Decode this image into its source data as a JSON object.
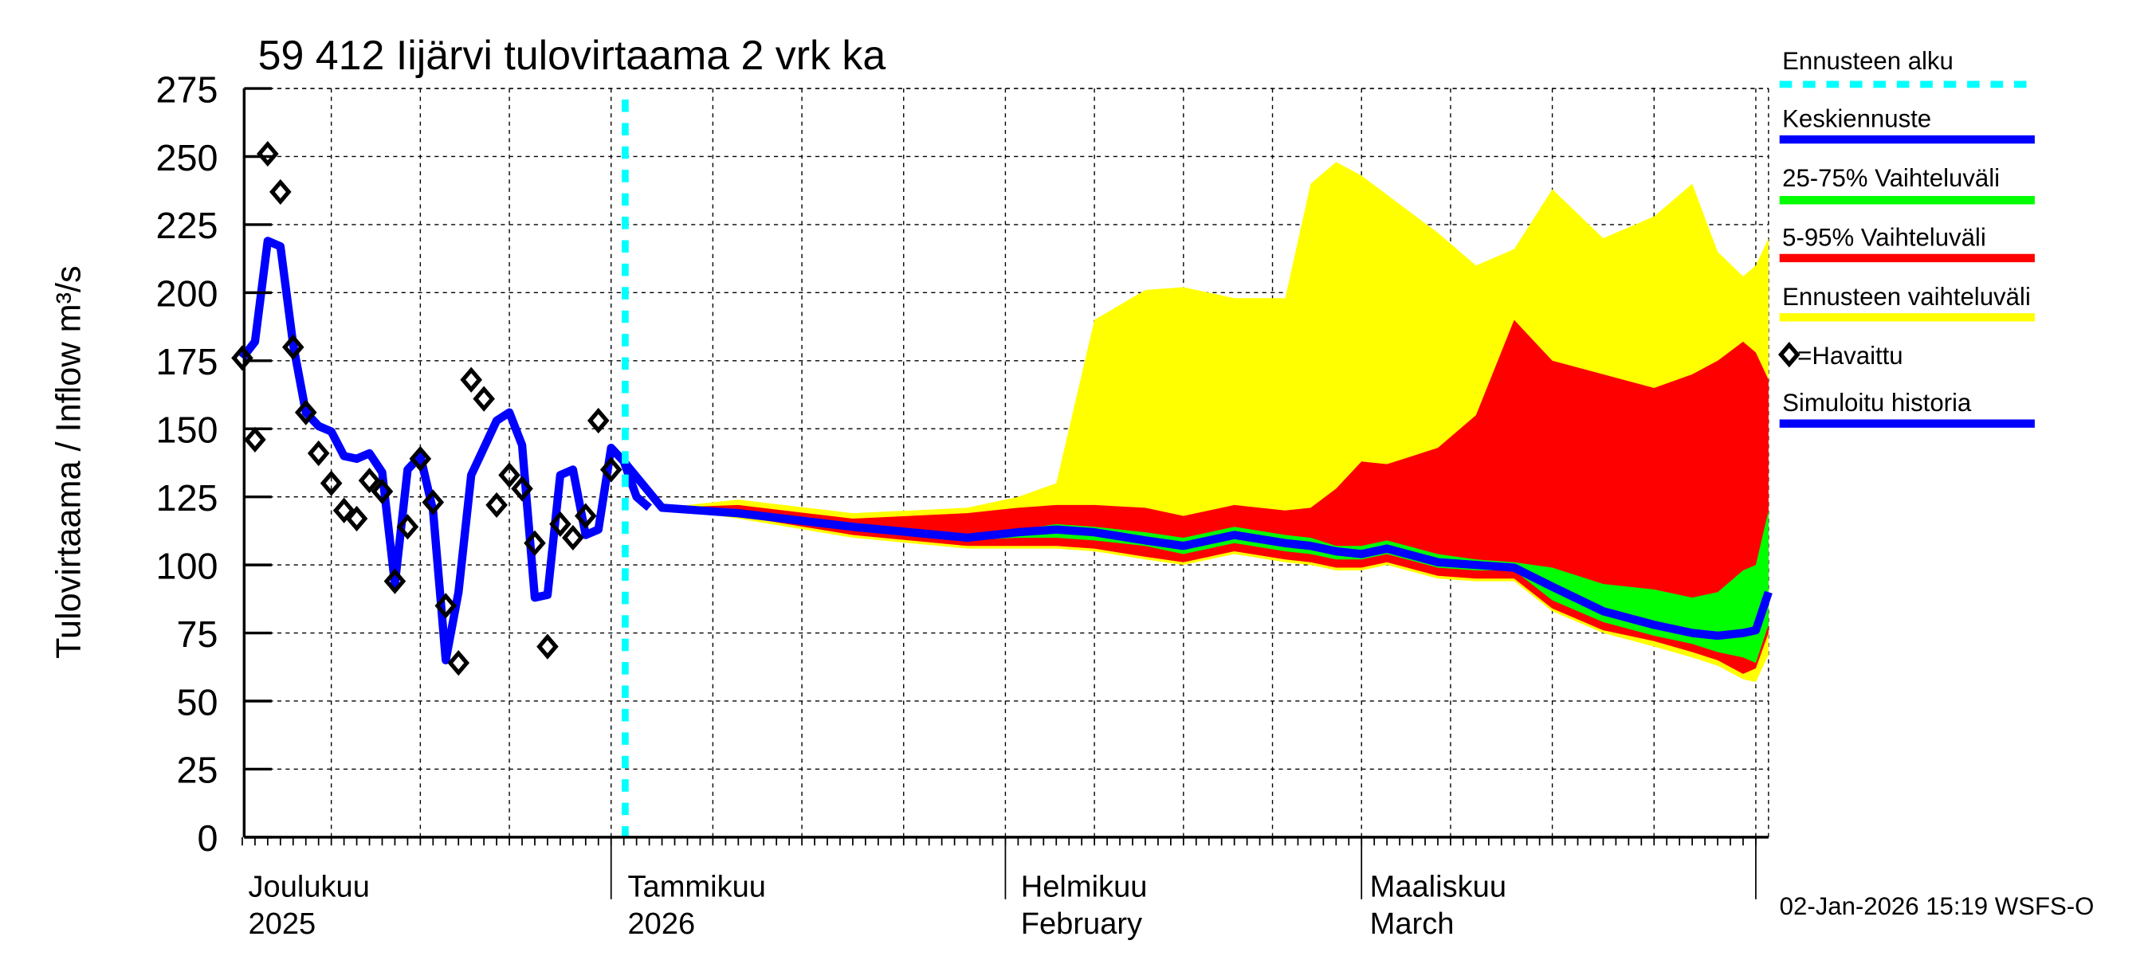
{
  "chart_data": {
    "type": "area",
    "title": "59 412 Iijärvi tulovirtaama 2 vrk ka",
    "ylabel": "Tulovirtaama / Inflow    m³/s",
    "ylim": [
      0,
      275
    ],
    "yticks": [
      0,
      25,
      50,
      75,
      100,
      125,
      150,
      175,
      200,
      225,
      250,
      275
    ],
    "xlim": [
      "2025-12-03",
      "2026-04-02"
    ],
    "grid": true,
    "legend_position": "right",
    "month_labels": [
      {
        "date": "2025-12-01",
        "line1": "Joulukuu",
        "line2": "2025"
      },
      {
        "date": "2026-01-01",
        "line1": "Tammikuu",
        "line2": "2026"
      },
      {
        "date": "2026-02-01",
        "line1": "Helmikuu",
        "line2": "February"
      },
      {
        "date": "2026-03-01",
        "line1": "Maaliskuu",
        "line2": "March"
      }
    ],
    "forecast_start": "2026-01-02",
    "legend": {
      "forecast_start": "Ennusteen alku",
      "median": "Keskiennuste",
      "p25_75": "25-75% Vaihteluväli",
      "p5_95": "5-95% Vaihteluväli",
      "range": "Ennusteen vaihteluväli",
      "observed": "=Havaittu",
      "simulated": "Simuloitu historia"
    },
    "colors": {
      "forecast_start": "#00ffff",
      "median": "#0000ff",
      "p25_75": "#00ff00",
      "p5_95": "#ff0000",
      "range": "#ffff00",
      "observed": "#000000",
      "simulated": "#0000ff"
    },
    "observed": {
      "start": "2025-12-03",
      "values": [
        176,
        146,
        251,
        237,
        180,
        156,
        141,
        130,
        120,
        117,
        131,
        127,
        94,
        114,
        139,
        123,
        85,
        64,
        168,
        161,
        122,
        133,
        128,
        108,
        70,
        115,
        110,
        118,
        153,
        135
      ]
    },
    "simulated": {
      "start": "2025-12-03",
      "values": [
        176,
        182,
        219,
        217,
        181,
        156,
        151,
        149,
        140,
        139,
        141,
        134,
        93,
        135,
        140,
        120,
        65,
        90,
        133,
        143,
        153,
        156,
        144,
        88,
        89,
        133,
        135,
        111,
        113,
        143,
        138,
        125,
        121
      ]
    },
    "forecast": {
      "dates": [
        "2026-01-02",
        "2026-01-05",
        "2026-01-11",
        "2026-01-20",
        "2026-01-29",
        "2026-02-02",
        "2026-02-05",
        "2026-02-08",
        "2026-02-12",
        "2026-02-15",
        "2026-02-19",
        "2026-02-23",
        "2026-02-25",
        "2026-02-27",
        "2026-03-01",
        "2026-03-03",
        "2026-03-07",
        "2026-03-10",
        "2026-03-13",
        "2026-03-16",
        "2026-03-20",
        "2026-03-24",
        "2026-03-27",
        "2026-03-29",
        "2026-03-31",
        "2026-04-01",
        "2026-04-02"
      ],
      "min": [
        138,
        121,
        117,
        110,
        106,
        106,
        106,
        105,
        102,
        100,
        104,
        101,
        100,
        98,
        98,
        100,
        95,
        94,
        94,
        83,
        75,
        70,
        66,
        63,
        58,
        57,
        67
      ],
      "p5": [
        138,
        121,
        118,
        111,
        107,
        107,
        107,
        106,
        103,
        101,
        105,
        102,
        101,
        99,
        99,
        101,
        96,
        95,
        95,
        84,
        76,
        72,
        68,
        65,
        60,
        62,
        75
      ],
      "p25": [
        138,
        121,
        119,
        113,
        109,
        110,
        110,
        109,
        107,
        104,
        108,
        105,
        104,
        102,
        102,
        104,
        99,
        98,
        98,
        87,
        79,
        74,
        71,
        68,
        66,
        64,
        78
      ],
      "median": [
        138,
        121,
        119,
        114,
        110,
        112,
        113,
        112,
        109,
        107,
        111,
        108,
        107,
        105,
        104,
        106,
        101,
        100,
        99,
        92,
        83,
        78,
        75,
        74,
        75,
        76,
        90
      ],
      "p75": [
        138,
        121,
        120,
        115,
        111,
        113,
        115,
        114,
        112,
        110,
        114,
        111,
        110,
        107,
        107,
        109,
        104,
        102,
        101,
        99,
        93,
        91,
        88,
        90,
        98,
        100,
        120
      ],
      "p95": [
        138,
        121,
        122,
        117,
        119,
        121,
        122,
        122,
        121,
        118,
        122,
        120,
        121,
        128,
        138,
        137,
        143,
        155,
        190,
        175,
        170,
        165,
        170,
        175,
        182,
        178,
        168
      ],
      "max": [
        138,
        121,
        124,
        119,
        121,
        125,
        130,
        190,
        201,
        202,
        198,
        198,
        240,
        248,
        243,
        236,
        222,
        210,
        216,
        238,
        220,
        228,
        240,
        215,
        206,
        210,
        220
      ]
    }
  },
  "footer": {
    "timestamp": "02-Jan-2026 15:19 WSFS-O"
  }
}
